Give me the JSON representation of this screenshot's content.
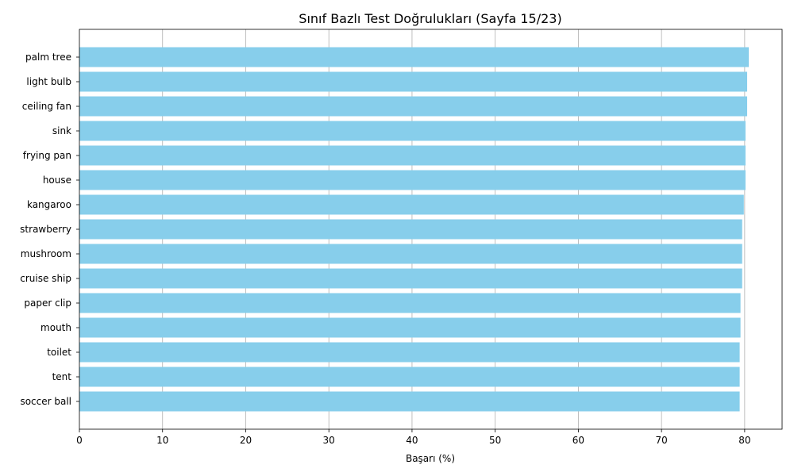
{
  "chart_data": {
    "type": "bar",
    "orientation": "horizontal",
    "title": "Sınıf Bazlı Test Doğrulukları (Sayfa 15/23)",
    "xlabel": "Başarı (%)",
    "ylabel": "",
    "xlim": [
      0,
      84.5
    ],
    "xticks": [
      "0",
      "10",
      "20",
      "30",
      "40",
      "50",
      "60",
      "70",
      "80"
    ],
    "grid": "x-axis vertical lines",
    "categories": [
      "palm tree",
      "light bulb",
      "ceiling fan",
      "sink",
      "frying pan",
      "house",
      "kangaroo",
      "strawberry",
      "mushroom",
      "cruise ship",
      "paper clip",
      "mouth",
      "toilet",
      "tent",
      "soccer ball"
    ],
    "values": [
      80.5,
      80.3,
      80.3,
      80.1,
      80.1,
      80.1,
      79.9,
      79.7,
      79.7,
      79.7,
      79.5,
      79.5,
      79.4,
      79.4,
      79.4
    ],
    "bar_color": "#87ceeb"
  }
}
